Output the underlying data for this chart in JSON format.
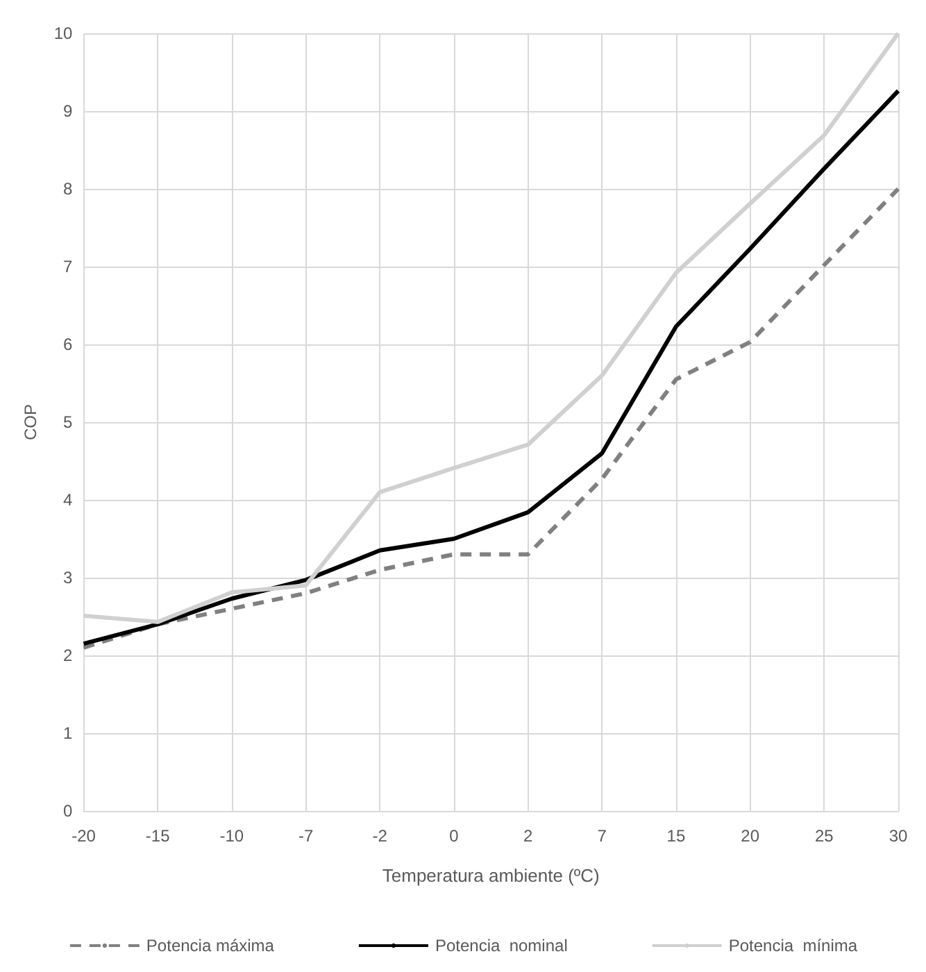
{
  "chart_data": {
    "type": "line",
    "xlabel": "Temperatura ambiente (ºC)",
    "ylabel": "COP",
    "categories": [
      "-20",
      "-15",
      "-10",
      "-7",
      "-2",
      "0",
      "2",
      "7",
      "15",
      "20",
      "25",
      "30"
    ],
    "series": [
      {
        "name": "Potencia máxima",
        "color": "#808080",
        "line_style": "dashed",
        "values": [
          2.1,
          2.4,
          2.6,
          2.8,
          3.1,
          3.3,
          3.3,
          4.27,
          5.55,
          6.03,
          7.02,
          8.0
        ]
      },
      {
        "name": "Potencia  nominal",
        "color": "#000000",
        "line_style": "solid",
        "values": [
          2.15,
          2.4,
          2.73,
          2.97,
          3.35,
          3.5,
          3.84,
          4.6,
          6.23,
          7.23,
          8.26,
          9.26
        ]
      },
      {
        "name": "Potencia  mínima",
        "color": "#d0d0d0",
        "line_style": "solid",
        "values": [
          2.51,
          2.43,
          2.81,
          2.9,
          4.1,
          4.41,
          4.71,
          5.6,
          6.92,
          7.81,
          8.69,
          10
        ]
      }
    ],
    "ylim": [
      0,
      10
    ],
    "yticks": [
      0,
      1,
      2,
      3,
      4,
      5,
      6,
      7,
      8,
      9,
      10
    ],
    "grid": true,
    "legend": "bottom",
    "marker": "none"
  }
}
